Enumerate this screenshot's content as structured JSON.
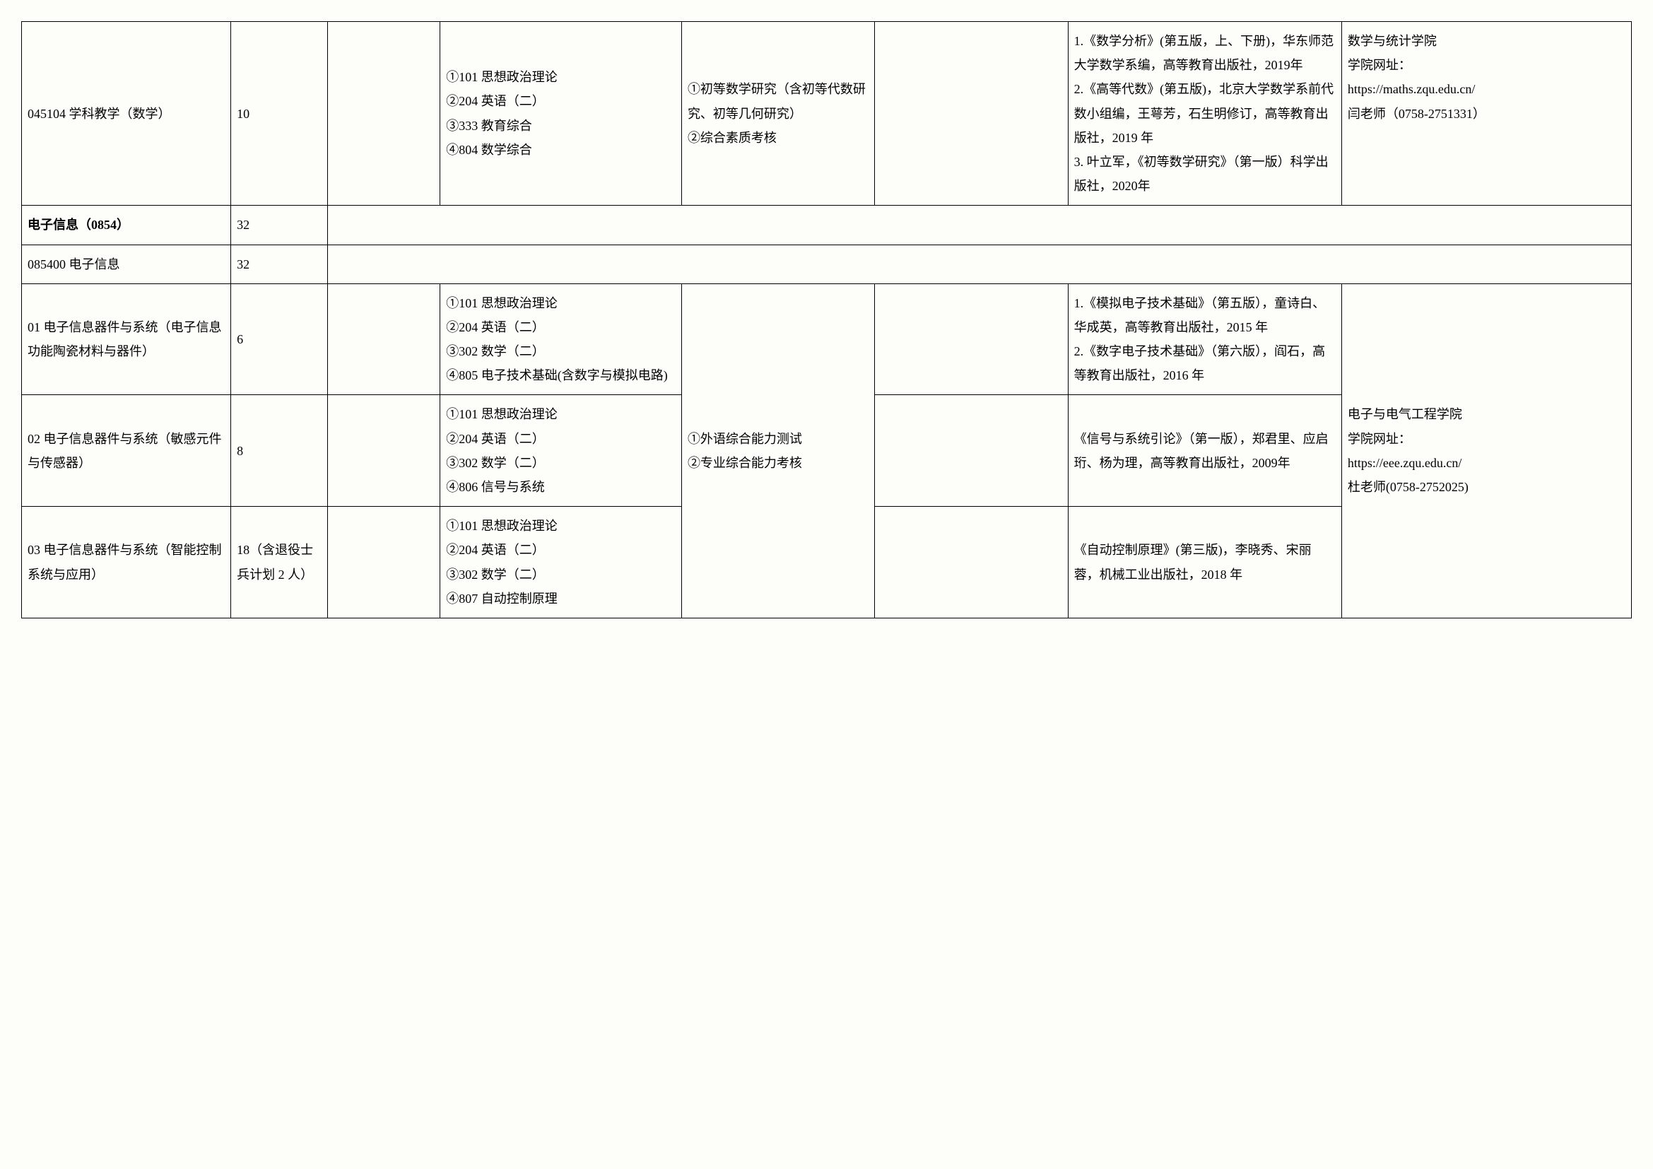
{
  "table": {
    "border_color": "#000000",
    "background_color": "#fdfdfa",
    "font_family": "SimSun",
    "font_size_pt": 14,
    "line_height": 1.9,
    "columns_pct": [
      13,
      6,
      7,
      15,
      12,
      12,
      17,
      18
    ],
    "rows": [
      {
        "c1": "045104 学科教学（数学）",
        "c2": "10",
        "c3": "",
        "c4": "①101 思想政治理论\n②204 英语（二）\n③333 教育综合\n④804 数学综合",
        "c5": "①初等数学研究（含初等代数研究、初等几何研究）\n②综合素质考核",
        "c6": "",
        "c7": "1.《数学分析》(第五版，上、下册)，华东师范大学数学系编，高等教育出版社，2019年\n2.《高等代数》(第五版)，北京大学数学系前代数小组编，王萼芳，石生明修订，高等教育出版社，2019 年\n3. 叶立军，《初等数学研究》（第一版）科学出版社，2020年",
        "c8": "数学与统计学院\n学院网址：\nhttps://maths.zqu.edu.cn/\n闫老师（0758-2751331）"
      },
      {
        "bold": true,
        "c1": "电子信息（0854）",
        "c2": "32",
        "c_rest": ""
      },
      {
        "c1": "085400 电子信息",
        "c2": "32",
        "c_rest": ""
      },
      {
        "c1": "01 电子信息器件与系统（电子信息功能陶瓷材料与器件）",
        "c2": "6",
        "c3": "",
        "c4": "①101 思想政治理论\n②204 英语（二）\n③302 数学（二）\n④805 电子技术基础(含数字与模拟电路)",
        "c5_merged": "①外语综合能力测试\n②专业综合能力考核",
        "c6": "",
        "c7": "1.《模拟电子技术基础》（第五版），童诗白、华成英，高等教育出版社，2015 年\n2.《数字电子技术基础》（第六版），阎石，高等教育出版社，2016 年",
        "c8_merged": "电子与电气工程学院\n学院网址：\nhttps://eee.zqu.edu.cn/\n杜老师(0758-2752025)"
      },
      {
        "c1": "02 电子信息器件与系统（敏感元件与传感器）",
        "c2": "8",
        "c3": "",
        "c4": "①101 思想政治理论\n②204 英语（二）\n③302 数学（二）\n④806 信号与系统",
        "c6": "",
        "c7": "《信号与系统引论》（第一版），郑君里、应启珩、杨为理，高等教育出版社，2009年"
      },
      {
        "c1": "03 电子信息器件与系统（智能控制系统与应用）",
        "c2": "18（含退役士兵计划 2 人）",
        "c3": "",
        "c4": "①101 思想政治理论\n②204 英语（二）\n③302 数学（二）\n④807 自动控制原理",
        "c6": "",
        "c7": "《自动控制原理》(第三版)，李晓秀、宋丽蓉，机械工业出版社，2018 年"
      }
    ]
  }
}
